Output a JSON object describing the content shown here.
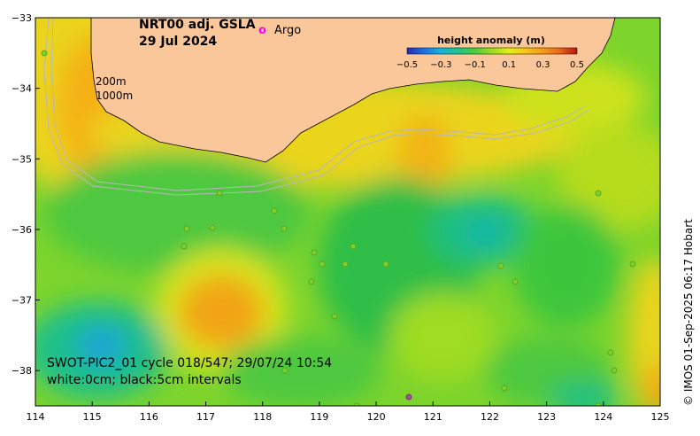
{
  "map": {
    "title": "NRT00 adj. GSLA",
    "date": "29 Jul 2024",
    "legend_marker": "o",
    "legend_label": "Argo",
    "legend_color": "#ff00ff",
    "depth_labels": [
      "200m",
      "1000m"
    ],
    "swath_line1": "SWOT-PIC2_01 cycle 018/547; 29/07/24 10:54",
    "swath_line2": "white:0cm; black:5cm intervals",
    "credit": "© IMOS 01-Sep-2025 06:17 Hobart",
    "x_ticks": [
      "114",
      "115",
      "116",
      "117",
      "118",
      "119",
      "120",
      "121",
      "122",
      "123",
      "124",
      "125"
    ],
    "y_ticks": [
      "−33",
      "−34",
      "−35",
      "−36",
      "−37",
      "−38"
    ],
    "lon_range": [
      114,
      125
    ],
    "lat_range": [
      -38.5,
      -33
    ],
    "land_color": "#f9c79a"
  },
  "colorbar": {
    "title": "height anomaly (m)",
    "ticks": [
      "−0.5",
      "−0.3",
      "−0.1",
      "0.1",
      "0.3",
      "0.5"
    ],
    "range": [
      -0.5,
      0.5
    ],
    "colors": [
      "#2a2ab0",
      "#1f6fe0",
      "#17b4d8",
      "#1fc48a",
      "#4fcc3a",
      "#9fdc20",
      "#e6ee14",
      "#f8c418",
      "#f59a1a",
      "#e8681a",
      "#b81414"
    ]
  }
}
